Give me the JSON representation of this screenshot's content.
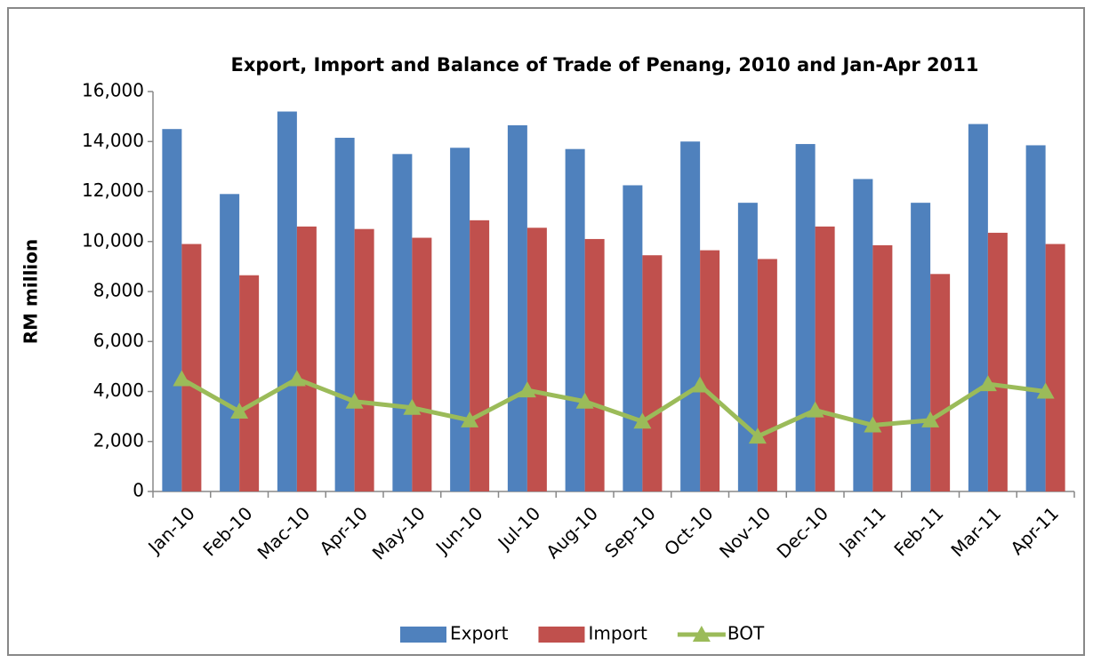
{
  "chart_data": {
    "type": "bar",
    "title": "Export, Import and Balance of Trade of Penang, 2010 and Jan-Apr 2011",
    "ylabel": "RM million",
    "categories": [
      "Jan-10",
      "Feb-10",
      "Mac-10",
      "Apr-10",
      "May-10",
      "Jun-10",
      "Jul-10",
      "Aug-10",
      "Sep-10",
      "Oct-10",
      "Nov-10",
      "Dec-10",
      "Jan-11",
      "Feb-11",
      "Mar-11",
      "Apr-11"
    ],
    "series": [
      {
        "name": "Export",
        "color": "#4f81bd",
        "type": "bar",
        "values": [
          14500,
          11900,
          15200,
          14150,
          13500,
          13750,
          14650,
          13700,
          12250,
          14000,
          11550,
          13900,
          12500,
          11550,
          14700,
          13850
        ]
      },
      {
        "name": "Import",
        "color": "#c0504d",
        "type": "bar",
        "values": [
          9900,
          8650,
          10600,
          10500,
          10150,
          10850,
          10550,
          10100,
          9450,
          9650,
          9300,
          10600,
          9850,
          8700,
          10350,
          9900
        ]
      },
      {
        "name": "BOT",
        "color": "#9bbb59",
        "type": "line",
        "marker": "triangle",
        "values": [
          4500,
          3200,
          4500,
          3600,
          3350,
          2850,
          4050,
          3600,
          2800,
          4250,
          2200,
          3250,
          2650,
          2850,
          4300,
          4000
        ]
      }
    ],
    "ylim": [
      0,
      16000
    ],
    "yticks": [
      0,
      {
        "value": 2000,
        "label": "2,000"
      },
      {
        "value": 4000,
        "label": "4,000"
      },
      {
        "value": 6000,
        "label": "6,000"
      },
      {
        "value": 8000,
        "label": "8,000"
      },
      {
        "value": 10000,
        "label": "10,000"
      },
      {
        "value": 12000,
        "label": "12,000"
      },
      {
        "value": 14000,
        "label": "14,000"
      },
      {
        "value": 16000,
        "label": "16,000"
      }
    ],
    "grid": false,
    "legend": "bottom"
  }
}
